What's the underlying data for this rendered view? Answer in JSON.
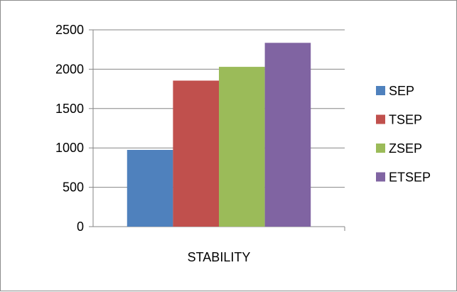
{
  "chart_data": {
    "type": "bar",
    "categories": [
      "STABILITY"
    ],
    "series": [
      {
        "name": "SEP",
        "values": [
          975
        ],
        "color": "#4f81bd"
      },
      {
        "name": "TSEP",
        "values": [
          1855
        ],
        "color": "#c0504d"
      },
      {
        "name": "ZSEP",
        "values": [
          2030
        ],
        "color": "#9bbb59"
      },
      {
        "name": "ETSEP",
        "values": [
          2335
        ],
        "color": "#8064a2"
      }
    ],
    "y_ticks": [
      "0",
      "500",
      "1000",
      "1500",
      "2000",
      "2500"
    ],
    "ylim": [
      0,
      2500
    ],
    "grid": true,
    "legend_position": "right"
  }
}
